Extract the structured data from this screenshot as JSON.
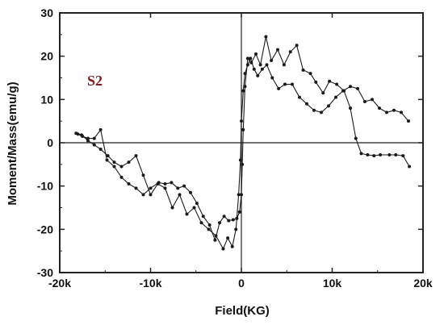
{
  "chart_data": {
    "type": "line",
    "xlabel": "Field(KG)",
    "ylabel": "Moment/Mass(emu/g)",
    "xlim": [
      -20000,
      20000
    ],
    "ylim": [
      -30,
      30
    ],
    "xticks": [
      -20000,
      -10000,
      0,
      10000,
      20000
    ],
    "xtick_labels": [
      "-20k",
      "-10k",
      "0",
      "10k",
      "20k"
    ],
    "yticks": [
      -30,
      -20,
      -10,
      0,
      10,
      20,
      30
    ],
    "ytick_labels": [
      "-30",
      "-20",
      "-10",
      "0",
      "10",
      "20",
      "30"
    ],
    "grid": false,
    "annotation": "S2",
    "series": [
      {
        "x": [
          18500,
          17800,
          17000,
          16300,
          15300,
          14600,
          13900,
          13200,
          12600,
          12000,
          11300,
          10500,
          9700,
          9000,
          8200,
          7600,
          6800,
          6100,
          5400,
          4700,
          4000,
          3300,
          2700,
          2100,
          1600,
          1100,
          700,
          400,
          200,
          100,
          0,
          -200,
          -500,
          -900,
          -1400,
          -1900,
          -2400,
          -2900,
          -3500,
          -4200,
          -4900,
          -5600,
          -6300,
          -7000,
          -7700,
          -8400,
          -9100,
          -10000,
          -10800,
          -11600,
          -12400,
          -13200,
          -14000,
          -14800,
          -15500,
          -16200,
          -16900,
          -17500,
          -18000
        ],
        "y": [
          -5.5,
          -3,
          -2.8,
          -2.8,
          -2.8,
          -3,
          -2.8,
          -2.5,
          1,
          8,
          12,
          13.5,
          14.2,
          11.5,
          14,
          16,
          16.8,
          22.5,
          21,
          18,
          21.5,
          19,
          24.5,
          18,
          20.5,
          18.5,
          19.5,
          13,
          3,
          -5,
          -12,
          -16,
          -17.5,
          -17.8,
          -18,
          -17,
          -18.5,
          -22.5,
          -19,
          -17,
          -14,
          -11.5,
          -10,
          -10.5,
          -9.2,
          -9.5,
          -9.2,
          -10.5,
          -12,
          -10.5,
          -9.5,
          -8,
          -5.5,
          -4,
          3,
          1,
          1,
          1.5,
          2
        ]
      },
      {
        "x": [
          -18200,
          -17600,
          -16900,
          -16200,
          -15500,
          -14700,
          -14000,
          -13200,
          -12400,
          -11600,
          -10800,
          -10000,
          -9200,
          -8400,
          -7600,
          -6800,
          -6000,
          -5200,
          -4400,
          -3600,
          -2800,
          -2000,
          -1500,
          -1000,
          -600,
          -300,
          -100,
          0,
          200,
          400,
          700,
          1000,
          1400,
          1800,
          2300,
          2800,
          3400,
          4100,
          4800,
          5600,
          6400,
          7200,
          8000,
          8800,
          9600,
          10400,
          11200,
          12000,
          12800,
          13600,
          14400,
          15200,
          16000,
          16800,
          17600,
          18400
        ],
        "y": [
          2.2,
          1.8,
          0.5,
          -0.5,
          -1.5,
          -3,
          -4.5,
          -5.5,
          -4.5,
          -3,
          -7.5,
          -12,
          -9.5,
          -10.5,
          -15,
          -12,
          -16.5,
          -15,
          -18.5,
          -20,
          -21.5,
          -24.5,
          -22,
          -24,
          -20,
          -12,
          -4,
          5,
          12,
          16,
          18,
          19.5,
          17,
          15.5,
          17,
          18,
          15,
          12.5,
          13.5,
          13.5,
          10.5,
          9,
          7.5,
          7,
          8.5,
          10.5,
          12,
          13,
          12.5,
          9.5,
          10,
          8,
          7,
          7.5,
          7,
          5
        ]
      }
    ]
  }
}
